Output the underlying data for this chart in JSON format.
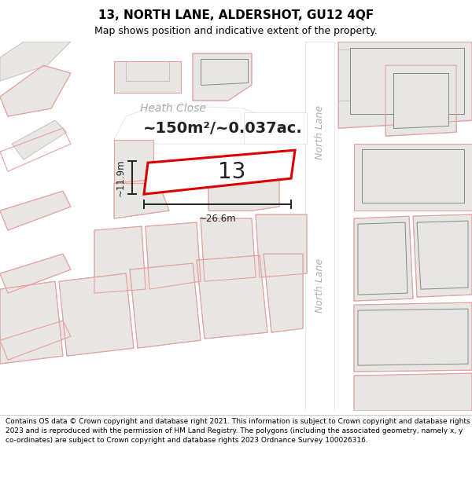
{
  "title_line1": "13, NORTH LANE, ALDERSHOT, GU12 4QF",
  "title_line2": "Map shows position and indicative extent of the property.",
  "footer_text": "Contains OS data © Crown copyright and database right 2021. This information is subject to Crown copyright and database rights 2023 and is reproduced with the permission of HM Land Registry. The polygons (including the associated geometry, namely x, y co-ordinates) are subject to Crown copyright and database rights 2023 Ordnance Survey 100026316.",
  "area_label": "~150m²/~0.037ac.",
  "plot_number": "13",
  "width_label": "~26.6m",
  "height_label": "~11.9m",
  "street_label1": "North Lane",
  "street_label2": "North Lane",
  "close_label": "Heath Close",
  "map_bg": "#f7f6f4",
  "road_color": "#ffffff",
  "building_fill": "#e8e6e2",
  "building_outline": "#c8c4bc",
  "plot_outline_red": "#dd0000",
  "plot_outline_pink": "#e8a0a0",
  "dim_line_color": "#222222",
  "text_color_dark": "#222222",
  "text_color_grey": "#aaaaaa",
  "title_fontsize": 11,
  "subtitle_fontsize": 9,
  "footer_fontsize": 6.5
}
